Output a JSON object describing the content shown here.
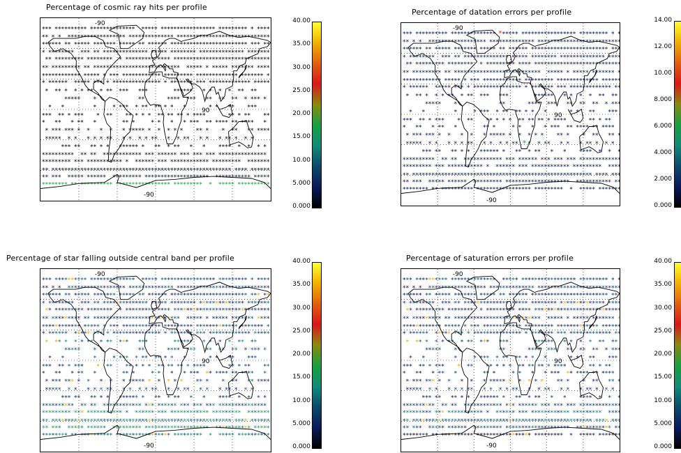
{
  "chart_data": [
    {
      "type": "scatter",
      "title": "Percentage of cosmic ray hits per profile",
      "map": {
        "longitude_label": "-90",
        "meridian_labels": [
          "-90",
          "90"
        ]
      },
      "colorbar": {
        "min": 0,
        "max": 40,
        "ticks": [
          "40.00",
          "35.00",
          "30.00",
          "25.00",
          "20.00",
          "15.00",
          "10.00",
          "5.000",
          "0.000"
        ]
      },
      "profile_bands": [
        {
          "lat": 80,
          "level": 0
        },
        {
          "lat": 72,
          "level": 0
        },
        {
          "lat": 65,
          "level": 0
        },
        {
          "lat": 57,
          "level": 0
        },
        {
          "lat": 50,
          "level": 0
        },
        {
          "lat": 42,
          "level": 0
        },
        {
          "lat": 34,
          "level": 0
        },
        {
          "lat": 27,
          "level": 0
        },
        {
          "lat": 19,
          "level": 0
        },
        {
          "lat": 11,
          "level": 0
        },
        {
          "lat": 3,
          "level": 0
        },
        {
          "lat": -5,
          "level": 0
        },
        {
          "lat": -12,
          "level": 0
        },
        {
          "lat": -20,
          "level": 0
        },
        {
          "lat": -28,
          "level": 0
        },
        {
          "lat": -36,
          "level": 0
        },
        {
          "lat": -44,
          "level": 0
        },
        {
          "lat": -51,
          "level": 0
        },
        {
          "lat": -59,
          "level": 0
        },
        {
          "lat": -66,
          "level": 2
        },
        {
          "lat": -73,
          "level": 18
        }
      ]
    },
    {
      "type": "scatter",
      "title": "Percentage of datation errors per profile",
      "map": {
        "longitude_label": "-90",
        "meridian_labels": [
          "-90",
          "90"
        ]
      },
      "colorbar": {
        "min": 0,
        "max": 14,
        "ticks": [
          "14.00",
          "12.00",
          "10.00",
          "8.000",
          "6.000",
          "4.000",
          "2.000",
          "0.000"
        ]
      },
      "profile_bands": [
        {
          "lat": 80,
          "level": 1
        },
        {
          "lat": 72,
          "level": 1
        },
        {
          "lat": 65,
          "level": 1
        },
        {
          "lat": 57,
          "level": 1
        },
        {
          "lat": 50,
          "level": 1
        },
        {
          "lat": 42,
          "level": 1
        },
        {
          "lat": 34,
          "level": 1
        },
        {
          "lat": 27,
          "level": 1
        },
        {
          "lat": 19,
          "level": 1
        },
        {
          "lat": 11,
          "level": 1
        },
        {
          "lat": 3,
          "level": 1
        },
        {
          "lat": -5,
          "level": 1
        },
        {
          "lat": -12,
          "level": 1
        },
        {
          "lat": -20,
          "level": 1
        },
        {
          "lat": -28,
          "level": 1
        },
        {
          "lat": -36,
          "level": 1
        },
        {
          "lat": -44,
          "level": 1
        },
        {
          "lat": -51,
          "level": 1
        },
        {
          "lat": -59,
          "level": 1
        },
        {
          "lat": -66,
          "level": 1
        },
        {
          "lat": -73,
          "level": 1
        }
      ],
      "highlights": [
        {
          "lon": -20,
          "lat": 80,
          "level": 10
        },
        {
          "lon": 20,
          "lat": -28,
          "level": 6
        }
      ]
    },
    {
      "type": "scatter",
      "title": "Percentage of star falling outside central band per profile",
      "map": {
        "longitude_label": "-90",
        "meridian_labels": [
          "-90",
          "90"
        ]
      },
      "colorbar": {
        "min": 0,
        "max": 40,
        "ticks": [
          "40.00",
          "35.00",
          "30.00",
          "25.00",
          "20.00",
          "15.00",
          "10.00",
          "5.000",
          "0.000"
        ]
      },
      "profile_bands": [
        {
          "lat": 80,
          "level": 8
        },
        {
          "lat": 72,
          "level": 7
        },
        {
          "lat": 65,
          "level": 6
        },
        {
          "lat": 57,
          "level": 7
        },
        {
          "lat": 50,
          "level": 6
        },
        {
          "lat": 42,
          "level": 6
        },
        {
          "lat": 34,
          "level": 7
        },
        {
          "lat": 27,
          "level": 8
        },
        {
          "lat": 19,
          "level": 10
        },
        {
          "lat": 11,
          "level": 9
        },
        {
          "lat": 3,
          "level": 8
        },
        {
          "lat": -5,
          "level": 7
        },
        {
          "lat": -12,
          "level": 6
        },
        {
          "lat": -20,
          "level": 6
        },
        {
          "lat": -28,
          "level": 7
        },
        {
          "lat": -36,
          "level": 6
        },
        {
          "lat": -44,
          "level": 9
        },
        {
          "lat": -51,
          "level": 14
        },
        {
          "lat": -59,
          "level": 12
        },
        {
          "lat": -66,
          "level": 15
        },
        {
          "lat": -73,
          "level": 11
        }
      ]
    },
    {
      "type": "scatter",
      "title": "Percentage of saturation errors per profile",
      "map": {
        "longitude_label": "-90",
        "meridian_labels": [
          "-90",
          "90"
        ]
      },
      "colorbar": {
        "min": 0,
        "max": 40,
        "ticks": [
          "40.00",
          "35.00",
          "30.00",
          "25.00",
          "20.00",
          "15.00",
          "10.00",
          "5.000",
          "0.000"
        ]
      },
      "profile_bands": [
        {
          "lat": 80,
          "level": 7
        },
        {
          "lat": 72,
          "level": 6
        },
        {
          "lat": 65,
          "level": 5
        },
        {
          "lat": 57,
          "level": 6
        },
        {
          "lat": 50,
          "level": 5
        },
        {
          "lat": 42,
          "level": 5
        },
        {
          "lat": 34,
          "level": 6
        },
        {
          "lat": 27,
          "level": 7
        },
        {
          "lat": 19,
          "level": 8
        },
        {
          "lat": 11,
          "level": 7
        },
        {
          "lat": 3,
          "level": 7
        },
        {
          "lat": -5,
          "level": 6
        },
        {
          "lat": -12,
          "level": 5
        },
        {
          "lat": -20,
          "level": 5
        },
        {
          "lat": -28,
          "level": 6
        },
        {
          "lat": -36,
          "level": 5
        },
        {
          "lat": -44,
          "level": 7
        },
        {
          "lat": -51,
          "level": 10
        },
        {
          "lat": -59,
          "level": 9
        },
        {
          "lat": -66,
          "level": 8
        },
        {
          "lat": -73,
          "level": 2
        }
      ]
    }
  ],
  "colors": {
    "colorbar_stops": [
      "#000000",
      "#0a1a5a",
      "#0a4a6a",
      "#128a78",
      "#18a040",
      "#8a8a10",
      "#d81818",
      "#e06010",
      "#f0b000",
      "#ffff30"
    ],
    "frame": "#000000",
    "coast": "#000000",
    "grid": "#000000"
  }
}
